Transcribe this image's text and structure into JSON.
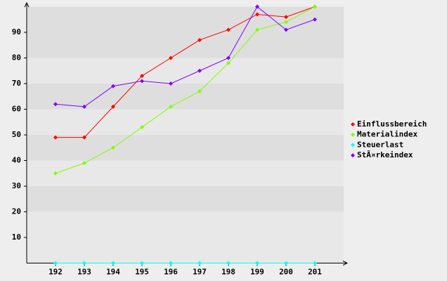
{
  "chart_data": {
    "type": "line",
    "categories": [
      "192",
      "193",
      "194",
      "195",
      "196",
      "197",
      "198",
      "199",
      "200",
      "201"
    ],
    "series": [
      {
        "name": "Einflussbereich",
        "color": "#ff0000",
        "values": [
          49,
          49,
          61,
          73,
          80,
          87,
          91,
          97,
          96,
          100
        ]
      },
      {
        "name": "Materialindex",
        "color": "#80ff00",
        "values": [
          35,
          39,
          45,
          53,
          61,
          67,
          78,
          91,
          94,
          100
        ]
      },
      {
        "name": "Steuerlast",
        "color": "#00ffff",
        "values": [
          0,
          0,
          0,
          0,
          0,
          0,
          0,
          0,
          0,
          0
        ]
      },
      {
        "name": "StÃ¤rkeindex",
        "color": "#8000ff",
        "values": [
          62,
          61,
          69,
          71,
          70,
          75,
          80,
          100,
          91,
          95
        ]
      }
    ],
    "ylim": [
      0,
      100
    ],
    "yticks": [
      10,
      20,
      30,
      40,
      50,
      60,
      70,
      80,
      90
    ],
    "grid": true,
    "legend": "right"
  }
}
